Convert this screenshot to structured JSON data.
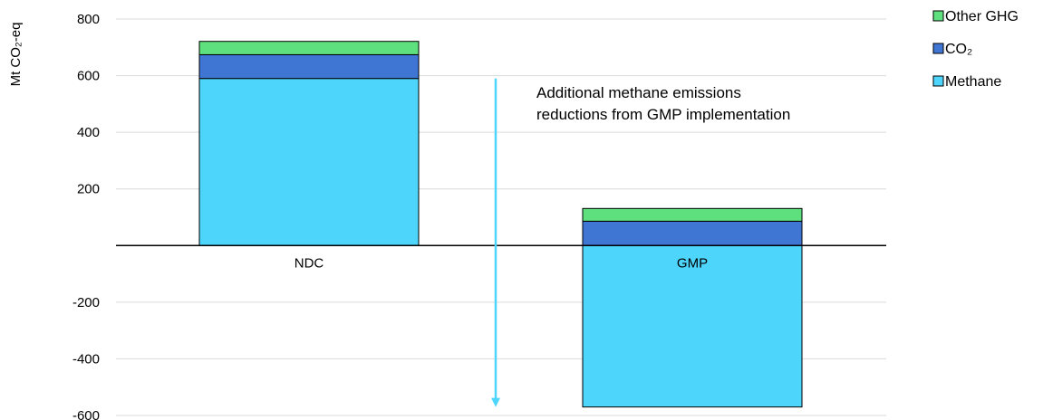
{
  "chart_data": {
    "type": "bar",
    "stacked": true,
    "title": "",
    "xlabel": "",
    "ylabel": "Mt CO₂-eq",
    "ylim": [
      -600,
      800
    ],
    "yticks": [
      800,
      600,
      400,
      200,
      -200,
      -400,
      -600
    ],
    "grid": true,
    "legend_position": "top-right",
    "categories": [
      "NDC",
      "GMP"
    ],
    "series": [
      {
        "name": "Methane",
        "color": "#4DD5FC",
        "values": [
          590,
          -570
        ]
      },
      {
        "name": "CO₂",
        "color": "#3F76D3",
        "values": [
          84,
          86
        ]
      },
      {
        "name": "Other GHG",
        "color": "#5EE07E",
        "values": [
          47,
          45
        ]
      }
    ],
    "annotation": {
      "lines": [
        "Additional methane emissions",
        "reductions from GMP implementation"
      ],
      "arrow_from": 590,
      "arrow_to": -570,
      "arrow_color": "#4DD5FC"
    }
  }
}
